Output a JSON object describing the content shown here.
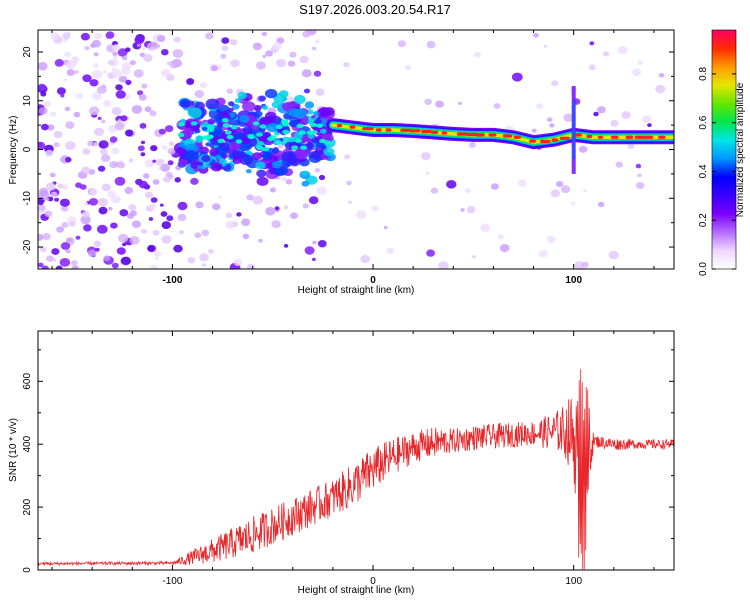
{
  "title": "S197.2026.003.20.54.R17",
  "colors": {
    "snr_line": "#e8272b",
    "spectral_ridge": "#ff2020",
    "speckle": "#7a18ff",
    "frame": "#000000"
  },
  "chart_data": [
    {
      "type": "heatmap",
      "name": "spectrogram",
      "xlabel": "Height of straight line (km)",
      "ylabel": "Frequency (Hz)",
      "xlim": [
        -167,
        150
      ],
      "ylim": [
        -24.5,
        24.5
      ],
      "x_ticks": [
        -100,
        0,
        100
      ],
      "y_ticks": [
        -20,
        -10,
        0,
        10,
        20
      ],
      "ridge": {
        "x": [
          -20,
          -10,
          0,
          10,
          20,
          30,
          40,
          50,
          60,
          70,
          80,
          90,
          100,
          110,
          120,
          130,
          150
        ],
        "frequency_hz": [
          5,
          4.5,
          4,
          4,
          3.8,
          3.5,
          3.2,
          3,
          3,
          2.5,
          1.5,
          2,
          3,
          2.5,
          2.5,
          2.5,
          2.5
        ]
      },
      "features": [
        {
          "x": 100,
          "frequency_range": [
            -5,
            13
          ],
          "note": "vertical streak near 100 km"
        }
      ],
      "colorbar": {
        "label": "Normalized spectral amplitude",
        "ticks": [
          "0.0",
          "0.2",
          "0.4",
          "0.6",
          "0.8"
        ],
        "range": [
          0,
          0.98
        ],
        "colormap": [
          "#ffffff",
          "#f0d6ff",
          "#b56cff",
          "#7a00ff",
          "#3a00ff",
          "#0000ff",
          "#0096ff",
          "#00e6e6",
          "#00e64d",
          "#66e600",
          "#e6e600",
          "#ff9900",
          "#ff2a00",
          "#ff0066"
        ]
      }
    },
    {
      "type": "line",
      "name": "snr",
      "xlabel": "Height of straight line (km)",
      "ylabel": "SNR (10 * v/v)",
      "xlim": [
        -167,
        150
      ],
      "ylim": [
        0,
        760
      ],
      "x_ticks": [
        -100,
        0,
        100
      ],
      "y_ticks": [
        0,
        200,
        400,
        600
      ],
      "envelope_x": [
        -167,
        -100,
        -95,
        -80,
        -70,
        -60,
        -50,
        -40,
        -30,
        -20,
        -10,
        0,
        10,
        20,
        30,
        40,
        50,
        60,
        70,
        80,
        90,
        95,
        100,
        103,
        105,
        107,
        110,
        120,
        130,
        140,
        150
      ],
      "envelope_y": [
        20,
        22,
        30,
        60,
        85,
        110,
        140,
        170,
        200,
        230,
        270,
        320,
        360,
        390,
        405,
        410,
        420,
        425,
        430,
        435,
        440,
        445,
        430,
        300,
        250,
        380,
        410,
        400,
        400,
        400,
        400
      ],
      "noise_amplitude": [
        5,
        5,
        15,
        40,
        50,
        60,
        60,
        60,
        60,
        60,
        70,
        70,
        60,
        50,
        50,
        40,
        40,
        40,
        40,
        40,
        60,
        80,
        140,
        260,
        300,
        150,
        20,
        20,
        15,
        15,
        15
      ]
    }
  ]
}
